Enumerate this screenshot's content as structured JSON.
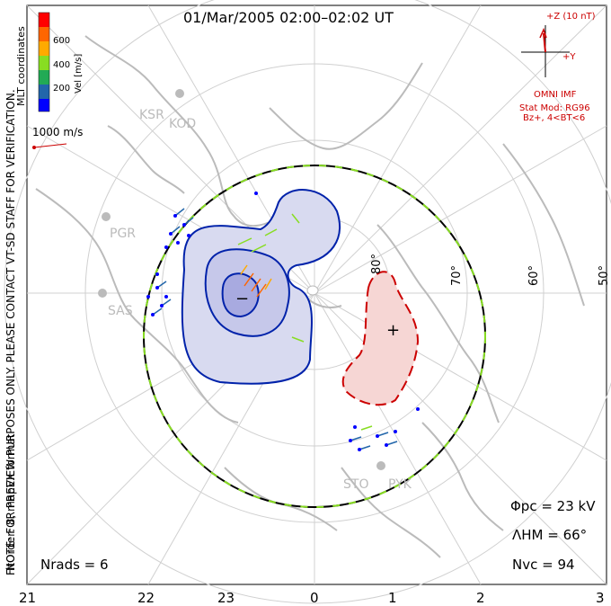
{
  "title": "01/Mar/2005 02:00–02:02 UT",
  "side_note_line1": "NOTE: FOR PREVIEW PURPOSES ONLY. PLEASE CONTACT VT-SD STAFF FOR VERIFICATION.",
  "side_note_line2": "FitOrder: 8, mapEX format",
  "coord_label": "MLT coordinates",
  "colorbar": {
    "label": "Vel [m/s]",
    "ticks": [
      "600",
      "400",
      "200"
    ],
    "colors": [
      "#ff0000",
      "#ff6600",
      "#ffaa00",
      "#88dd22",
      "#22aa55",
      "#2266aa",
      "#0000ff"
    ]
  },
  "velocity_scale_label": "1000 m/s",
  "imf": {
    "z_label": "+Z (10 nT)",
    "y_label": "+Y",
    "source": "OMNI IMF",
    "model_line1": "Stat Mod: RG96",
    "model_line2": "Bz+, 4<BT<6"
  },
  "stations": [
    "KSR",
    "KOD",
    "PGR",
    "SAS",
    "STO",
    "PYK"
  ],
  "lat_labels": [
    "80°",
    "70°",
    "60°",
    "50°"
  ],
  "mlt_labels": [
    "21",
    "22",
    "23",
    "0",
    "1",
    "2",
    "3"
  ],
  "stats": {
    "phi_pc": "Φpc = 23 kV",
    "lambda_hm": "ΛHM = 66°",
    "n_vc": "Nvc = 94",
    "n_rads": "Nrads = 6"
  },
  "cells": {
    "negative_symbol": "−",
    "positive_symbol": "+"
  }
}
